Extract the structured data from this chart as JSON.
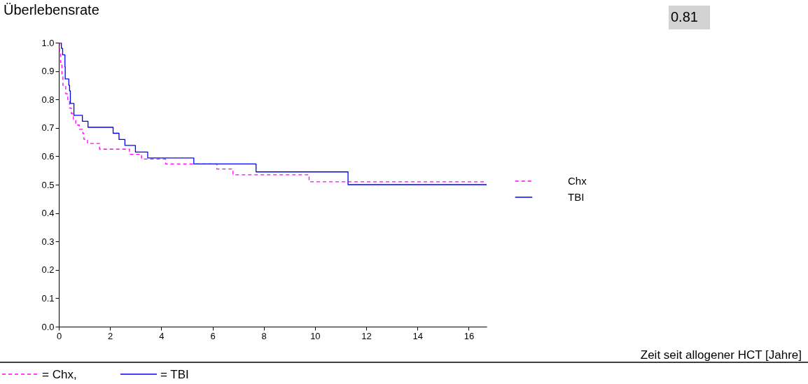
{
  "chart_data": {
    "type": "step",
    "title": "Überlebensrate",
    "annotations": [
      "0.81",
      "Zeit seit allogener HCT [Jahre]",
      "= Chx,",
      "= TBI"
    ],
    "xlim": [
      0,
      16.7
    ],
    "xticks": [
      0,
      2,
      4,
      6,
      8,
      10,
      12,
      14,
      16
    ],
    "ylim": [
      0,
      1
    ],
    "yticks": [
      {
        "value": 0,
        "label": "0.0"
      },
      0.1,
      0.2,
      0.3,
      0.4,
      0.5,
      0.6,
      0.7,
      0.8,
      0.9,
      {
        "value": 1,
        "label": "1.0"
      }
    ],
    "grid": false,
    "legend": "right",
    "marker": "none",
    "series": [
      {
        "name": "Chx",
        "color": "#ff00ff",
        "line_style": "dashed",
        "x": [
          0,
          0.03,
          0.07,
          0.12,
          0.16,
          0.27,
          0.35,
          0.42,
          0.49,
          0.57,
          0.66,
          0.8,
          0.94,
          0.98,
          1.12,
          1.59,
          2.76,
          3.23,
          4.17,
          6.17,
          6.8,
          9.77,
          16.7
        ],
        "values": [
          1.0,
          0.97,
          0.93,
          0.89,
          0.85,
          0.82,
          0.8,
          0.77,
          0.75,
          0.73,
          0.71,
          0.695,
          0.68,
          0.66,
          0.645,
          0.625,
          0.607,
          0.59,
          0.573,
          0.555,
          0.535,
          0.51,
          0.51
        ]
      },
      {
        "name": "TBI",
        "color": "#0000ff",
        "line_style": "solid",
        "x": [
          0,
          0.1,
          0.15,
          0.24,
          0.25,
          0.39,
          0.42,
          0.45,
          0.59,
          0.92,
          1.14,
          2.12,
          2.35,
          2.58,
          2.99,
          3.47,
          5.27,
          7.7,
          11.29,
          16.7
        ],
        "values": [
          1.0,
          0.98,
          0.957,
          0.915,
          0.872,
          0.85,
          0.83,
          0.786,
          0.744,
          0.723,
          0.702,
          0.681,
          0.659,
          0.638,
          0.615,
          0.594,
          0.573,
          0.545,
          0.5,
          0.5
        ]
      }
    ]
  }
}
